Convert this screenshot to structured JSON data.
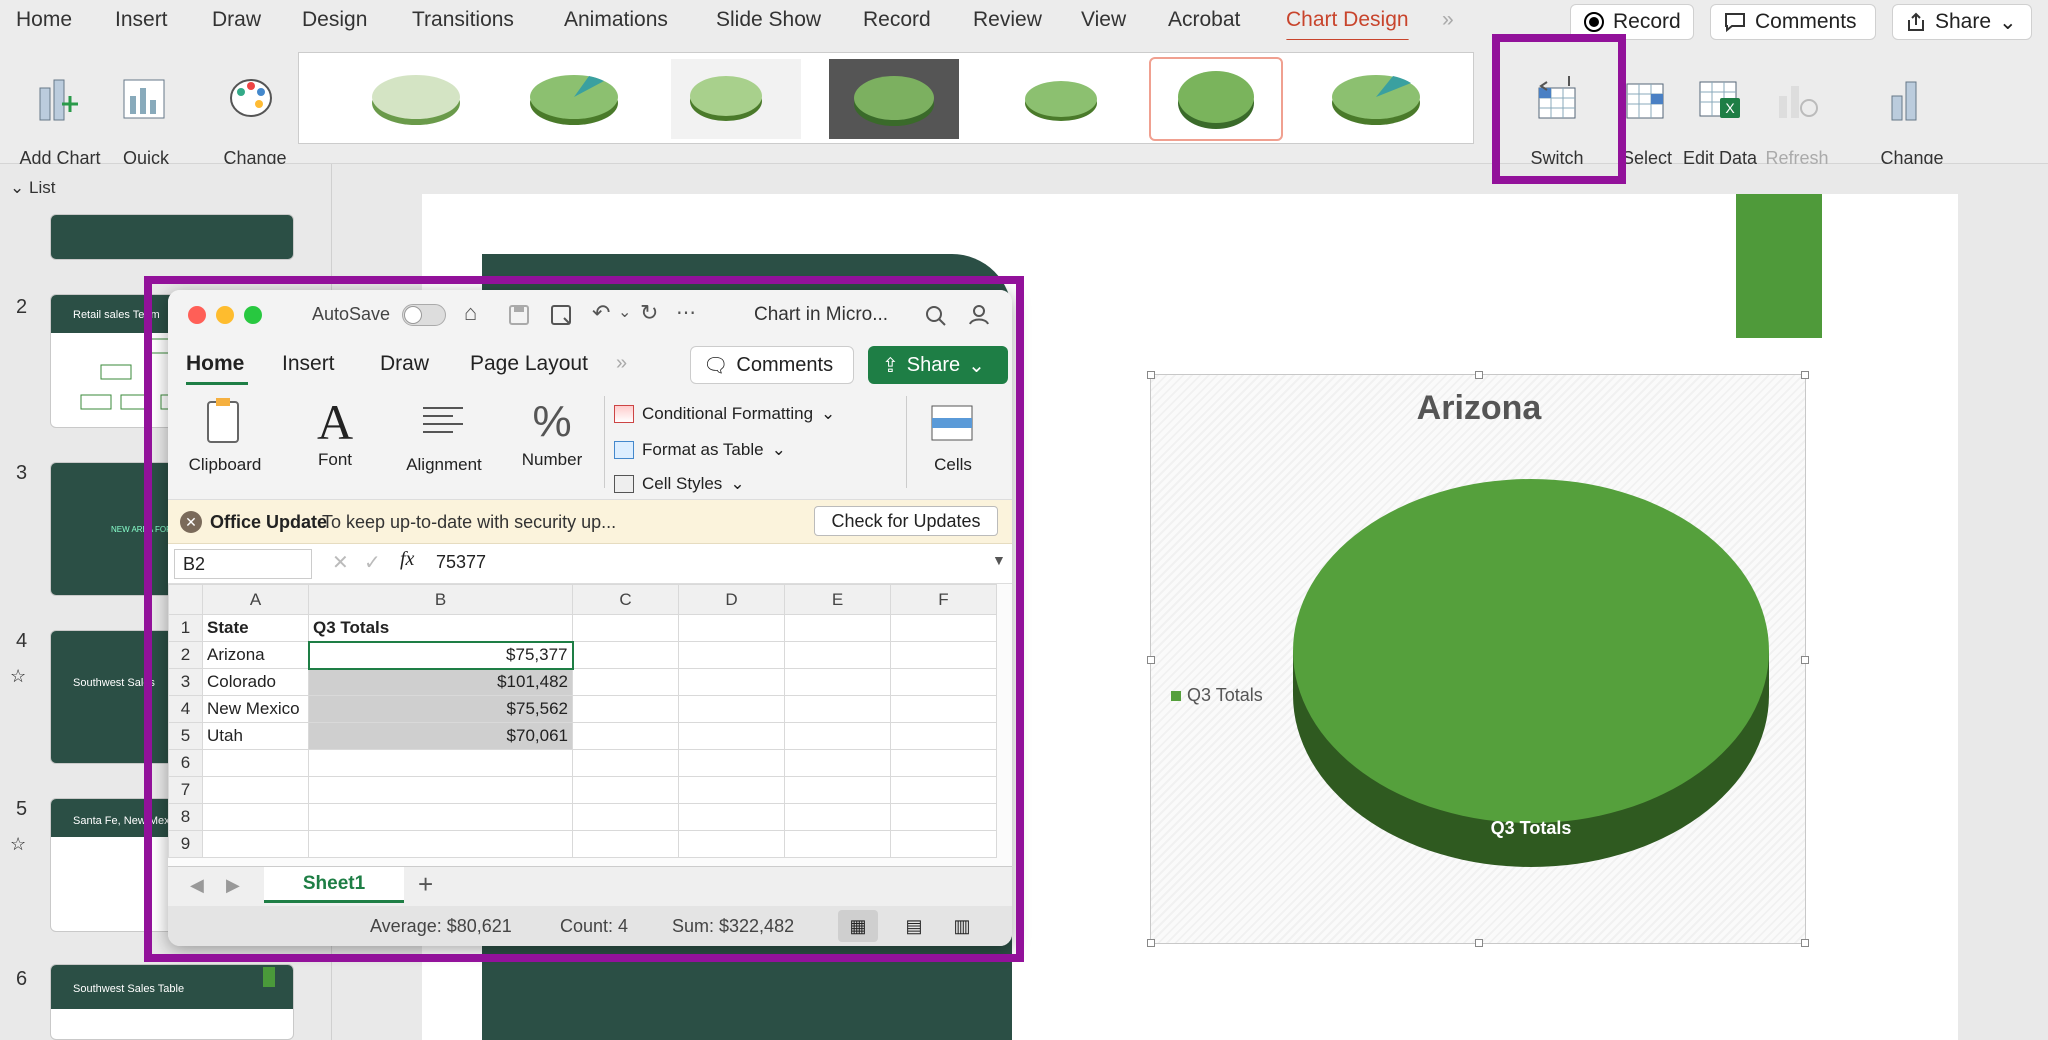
{
  "ppt": {
    "tabs": [
      "Home",
      "Insert",
      "Draw",
      "Design",
      "Transitions",
      "Animations",
      "Slide Show",
      "Record",
      "Review",
      "View",
      "Acrobat",
      "Chart Design"
    ],
    "record_label": "Record",
    "comments_label": "Comments",
    "share_label": "Share",
    "ribbon": {
      "add_chart_element": "Add Chart\nElement",
      "quick_layout": "Quick\nLayout",
      "change_colors": "Change\nColors",
      "switch_row_column": "Switch\nRow/Column",
      "select_data": "Select\nData",
      "edit_data_excel": "Edit Data\nin Excel",
      "refresh_data": "Refresh\nData",
      "change_chart_type": "Change\nChart Type"
    },
    "sidebar": {
      "list_label": "List",
      "slides": [
        {
          "num": "2",
          "title": "Retail sales Team"
        },
        {
          "num": "3",
          "title": ""
        },
        {
          "num": "4",
          "title": "Southwest Sales"
        },
        {
          "num": "5",
          "title": "Santa Fe, New Mexico"
        },
        {
          "num": "6",
          "title": "Southwest Sales Table"
        }
      ]
    }
  },
  "excel": {
    "autosave_label": "AutoSave",
    "title": "Chart in Micro...",
    "tabs": [
      "Home",
      "Insert",
      "Draw",
      "Page Layout"
    ],
    "comments_label": "Comments",
    "share_label": "Share",
    "ribbon": {
      "clipboard": "Clipboard",
      "font": "Font",
      "alignment": "Alignment",
      "number": "Number",
      "conditional_formatting": "Conditional Formatting",
      "format_as_table": "Format as Table",
      "cell_styles": "Cell Styles",
      "cells": "Cells"
    },
    "update_bar": {
      "title": "Office Update",
      "message": "To keep up-to-date with security up...",
      "button": "Check for Updates"
    },
    "name_box": "B2",
    "formula": "75377",
    "columns": [
      "A",
      "B",
      "C",
      "D",
      "E",
      "F"
    ],
    "rows": [
      {
        "n": "1",
        "a": "State",
        "b": "Q3 Totals"
      },
      {
        "n": "2",
        "a": "Arizona",
        "b": "$75,377"
      },
      {
        "n": "3",
        "a": "Colorado",
        "b": "$101,482"
      },
      {
        "n": "4",
        "a": "New Mexico",
        "b": "$75,562"
      },
      {
        "n": "5",
        "a": "Utah",
        "b": "$70,061"
      },
      {
        "n": "6",
        "a": "",
        "b": ""
      },
      {
        "n": "7",
        "a": "",
        "b": ""
      },
      {
        "n": "8",
        "a": "",
        "b": ""
      },
      {
        "n": "9",
        "a": "",
        "b": ""
      }
    ],
    "sheet_tab": "Sheet1",
    "status": {
      "average": "Average: $80,621",
      "count": "Count: 4",
      "sum": "Sum: $322,482"
    }
  },
  "chart_data": {
    "type": "pie",
    "title": "Arizona",
    "categories": [
      "Q3 Totals"
    ],
    "values": [
      75377
    ],
    "legend": "Q3 Totals",
    "legend_position": "left",
    "data_label": "Q3 Totals",
    "color": "#55a03c"
  },
  "colors": {
    "accent": "#c8442c",
    "highlight": "#92119a",
    "excel_green": "#1e7e45"
  }
}
